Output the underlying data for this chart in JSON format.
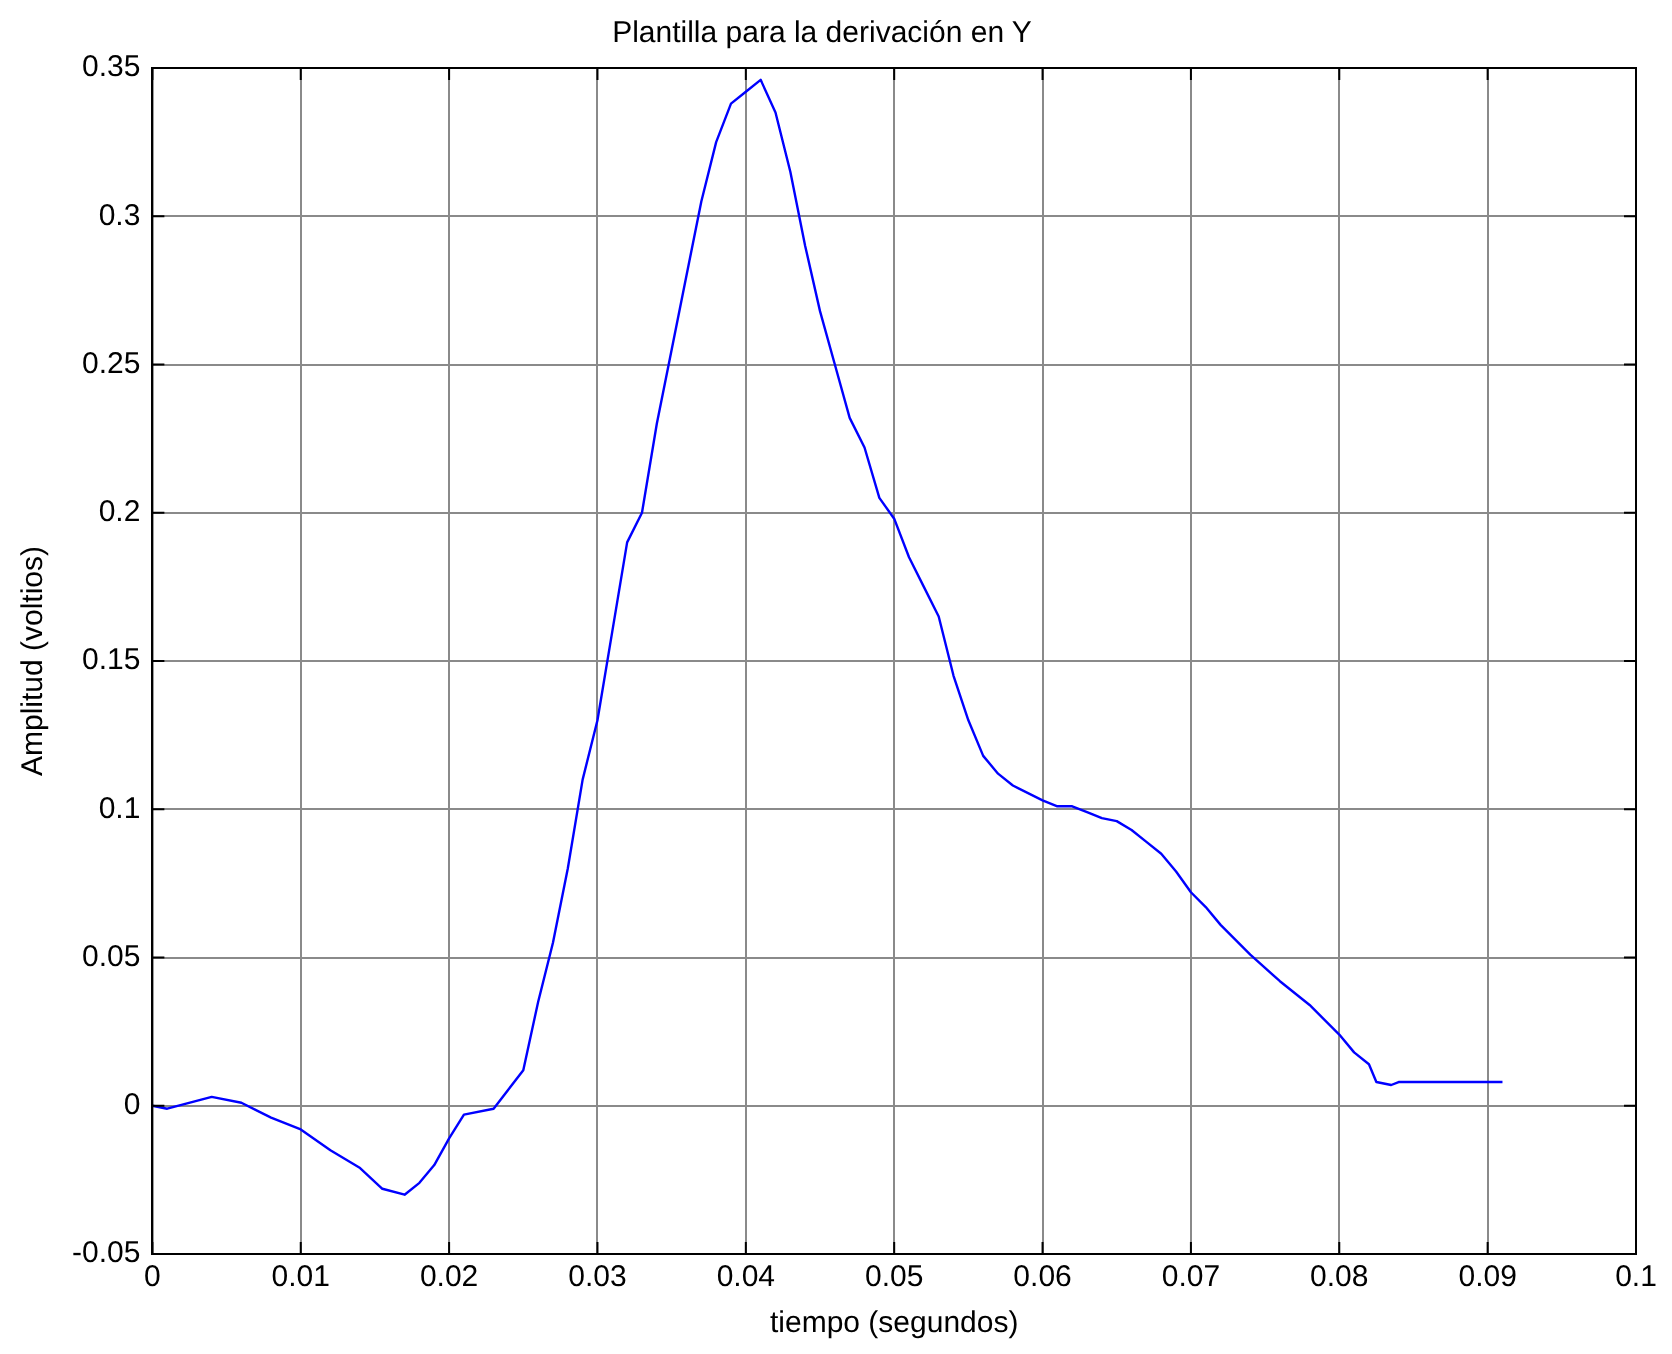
{
  "chart_data": {
    "type": "line",
    "title": "Plantilla para la derivación en Y",
    "xlabel": "tiempo (segundos)",
    "ylabel": "Amplitud (voltios)",
    "x": [
      0,
      0.001,
      0.004,
      0.006,
      0.008,
      0.01,
      0.012,
      0.014,
      0.0155,
      0.017,
      0.018,
      0.019,
      0.02,
      0.021,
      0.023,
      0.025,
      0.026,
      0.027,
      0.028,
      0.029,
      0.03,
      0.031,
      0.032,
      0.033,
      0.034,
      0.035,
      0.036,
      0.037,
      0.038,
      0.039,
      0.04,
      0.041,
      0.042,
      0.043,
      0.044,
      0.045,
      0.046,
      0.047,
      0.048,
      0.049,
      0.05,
      0.051,
      0.052,
      0.053,
      0.054,
      0.055,
      0.056,
      0.057,
      0.058,
      0.06,
      0.061,
      0.062,
      0.063,
      0.064,
      0.065,
      0.066,
      0.067,
      0.068,
      0.069,
      0.07,
      0.071,
      0.072,
      0.074,
      0.076,
      0.078,
      0.08,
      0.081,
      0.082,
      0.0825,
      0.0835,
      0.084,
      0.091
    ],
    "series": [
      {
        "color": "#0000ff",
        "values": [
          0,
          -0.001,
          0.003,
          0.001,
          -0.004,
          -0.008,
          -0.015,
          -0.021,
          -0.028,
          -0.03,
          -0.026,
          -0.02,
          -0.011,
          -0.003,
          -0.001,
          0.012,
          0.035,
          0.055,
          0.08,
          0.11,
          0.13,
          0.16,
          0.19,
          0.2,
          0.23,
          0.255,
          0.28,
          0.305,
          0.325,
          0.338,
          0.342,
          0.346,
          0.335,
          0.315,
          0.29,
          0.268,
          0.25,
          0.232,
          0.222,
          0.205,
          0.198,
          0.185,
          0.175,
          0.165,
          0.145,
          0.13,
          0.118,
          0.112,
          0.108,
          0.103,
          0.101,
          0.101,
          0.099,
          0.097,
          0.096,
          0.093,
          0.089,
          0.085,
          0.079,
          0.072,
          0.067,
          0.061,
          0.051,
          0.042,
          0.034,
          0.024,
          0.018,
          0.014,
          0.008,
          0.007,
          0.008,
          0.008
        ]
      }
    ],
    "xlim": [
      0,
      0.1
    ],
    "xticks": [
      0,
      0.01,
      0.02,
      0.03,
      0.04,
      0.05,
      0.06,
      0.07,
      0.08,
      0.09,
      0.1
    ],
    "ylim": [
      -0.05,
      0.35
    ],
    "yticks": [
      -0.05,
      0,
      0.05,
      0.1,
      0.15,
      0.2,
      0.25,
      0.3,
      0.35
    ],
    "grid": true,
    "legend": false,
    "marker": "none",
    "line_style": "solid"
  }
}
